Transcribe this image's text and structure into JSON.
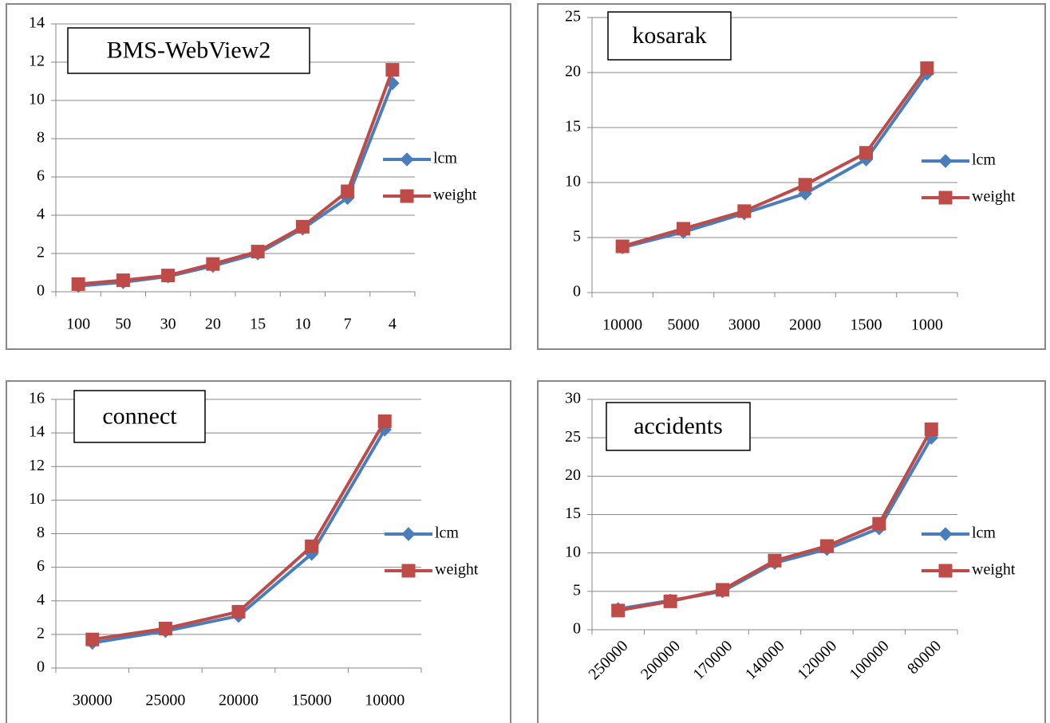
{
  "chart_data": [
    {
      "type": "line",
      "title": "BMS-WebView2",
      "categories": [
        "100",
        "50",
        "30",
        "20",
        "15",
        "10",
        "7",
        "4"
      ],
      "series": [
        {
          "name": "lcm",
          "color": "#4a7ebb",
          "marker": "diamond",
          "values": [
            0.3,
            0.5,
            0.8,
            1.35,
            2.0,
            3.3,
            4.9,
            10.9
          ]
        },
        {
          "name": "weight",
          "color": "#be4b48",
          "marker": "square",
          "values": [
            0.4,
            0.6,
            0.85,
            1.45,
            2.1,
            3.4,
            5.25,
            11.6
          ]
        }
      ],
      "ylim": [
        0,
        14
      ],
      "yticks": [
        0,
        2,
        4,
        6,
        8,
        10,
        12,
        14
      ],
      "grid": true,
      "legend": "right"
    },
    {
      "type": "line",
      "title": "kosarak",
      "categories": [
        "10000",
        "5000",
        "3000",
        "2000",
        "1500",
        "1000"
      ],
      "series": [
        {
          "name": "lcm",
          "color": "#4a7ebb",
          "marker": "diamond",
          "values": [
            4.1,
            5.5,
            7.2,
            9.0,
            12.1,
            19.9
          ]
        },
        {
          "name": "weight",
          "color": "#be4b48",
          "marker": "square",
          "values": [
            4.2,
            5.8,
            7.4,
            9.8,
            12.7,
            20.4
          ]
        }
      ],
      "ylim": [
        0,
        25
      ],
      "yticks": [
        0,
        5,
        10,
        15,
        20,
        25
      ],
      "grid": true,
      "legend": "right"
    },
    {
      "type": "line",
      "title": "connect",
      "categories": [
        "30000",
        "25000",
        "20000",
        "15000",
        "10000"
      ],
      "series": [
        {
          "name": "lcm",
          "color": "#4a7ebb",
          "marker": "diamond",
          "values": [
            1.5,
            2.2,
            3.1,
            6.8,
            14.2
          ]
        },
        {
          "name": "weight",
          "color": "#be4b48",
          "marker": "square",
          "values": [
            1.7,
            2.35,
            3.35,
            7.25,
            14.7
          ]
        }
      ],
      "ylim": [
        0,
        16
      ],
      "yticks": [
        0,
        2,
        4,
        6,
        8,
        10,
        12,
        14,
        16
      ],
      "grid": true,
      "legend": "right"
    },
    {
      "type": "line",
      "title": "accidents",
      "categories": [
        "250000",
        "200000",
        "170000",
        "140000",
        "120000",
        "100000",
        "80000"
      ],
      "series": [
        {
          "name": "lcm",
          "color": "#4a7ebb",
          "marker": "diamond",
          "values": [
            2.7,
            3.8,
            5.0,
            8.7,
            10.5,
            13.2,
            25.0
          ]
        },
        {
          "name": "weight",
          "color": "#be4b48",
          "marker": "square",
          "values": [
            2.5,
            3.7,
            5.2,
            9.0,
            10.9,
            13.8,
            26.1
          ]
        }
      ],
      "ylim": [
        0,
        30
      ],
      "yticks": [
        0,
        5,
        10,
        15,
        20,
        25,
        30
      ],
      "grid": true,
      "legend": "right",
      "x_label_rotation": -45
    }
  ]
}
